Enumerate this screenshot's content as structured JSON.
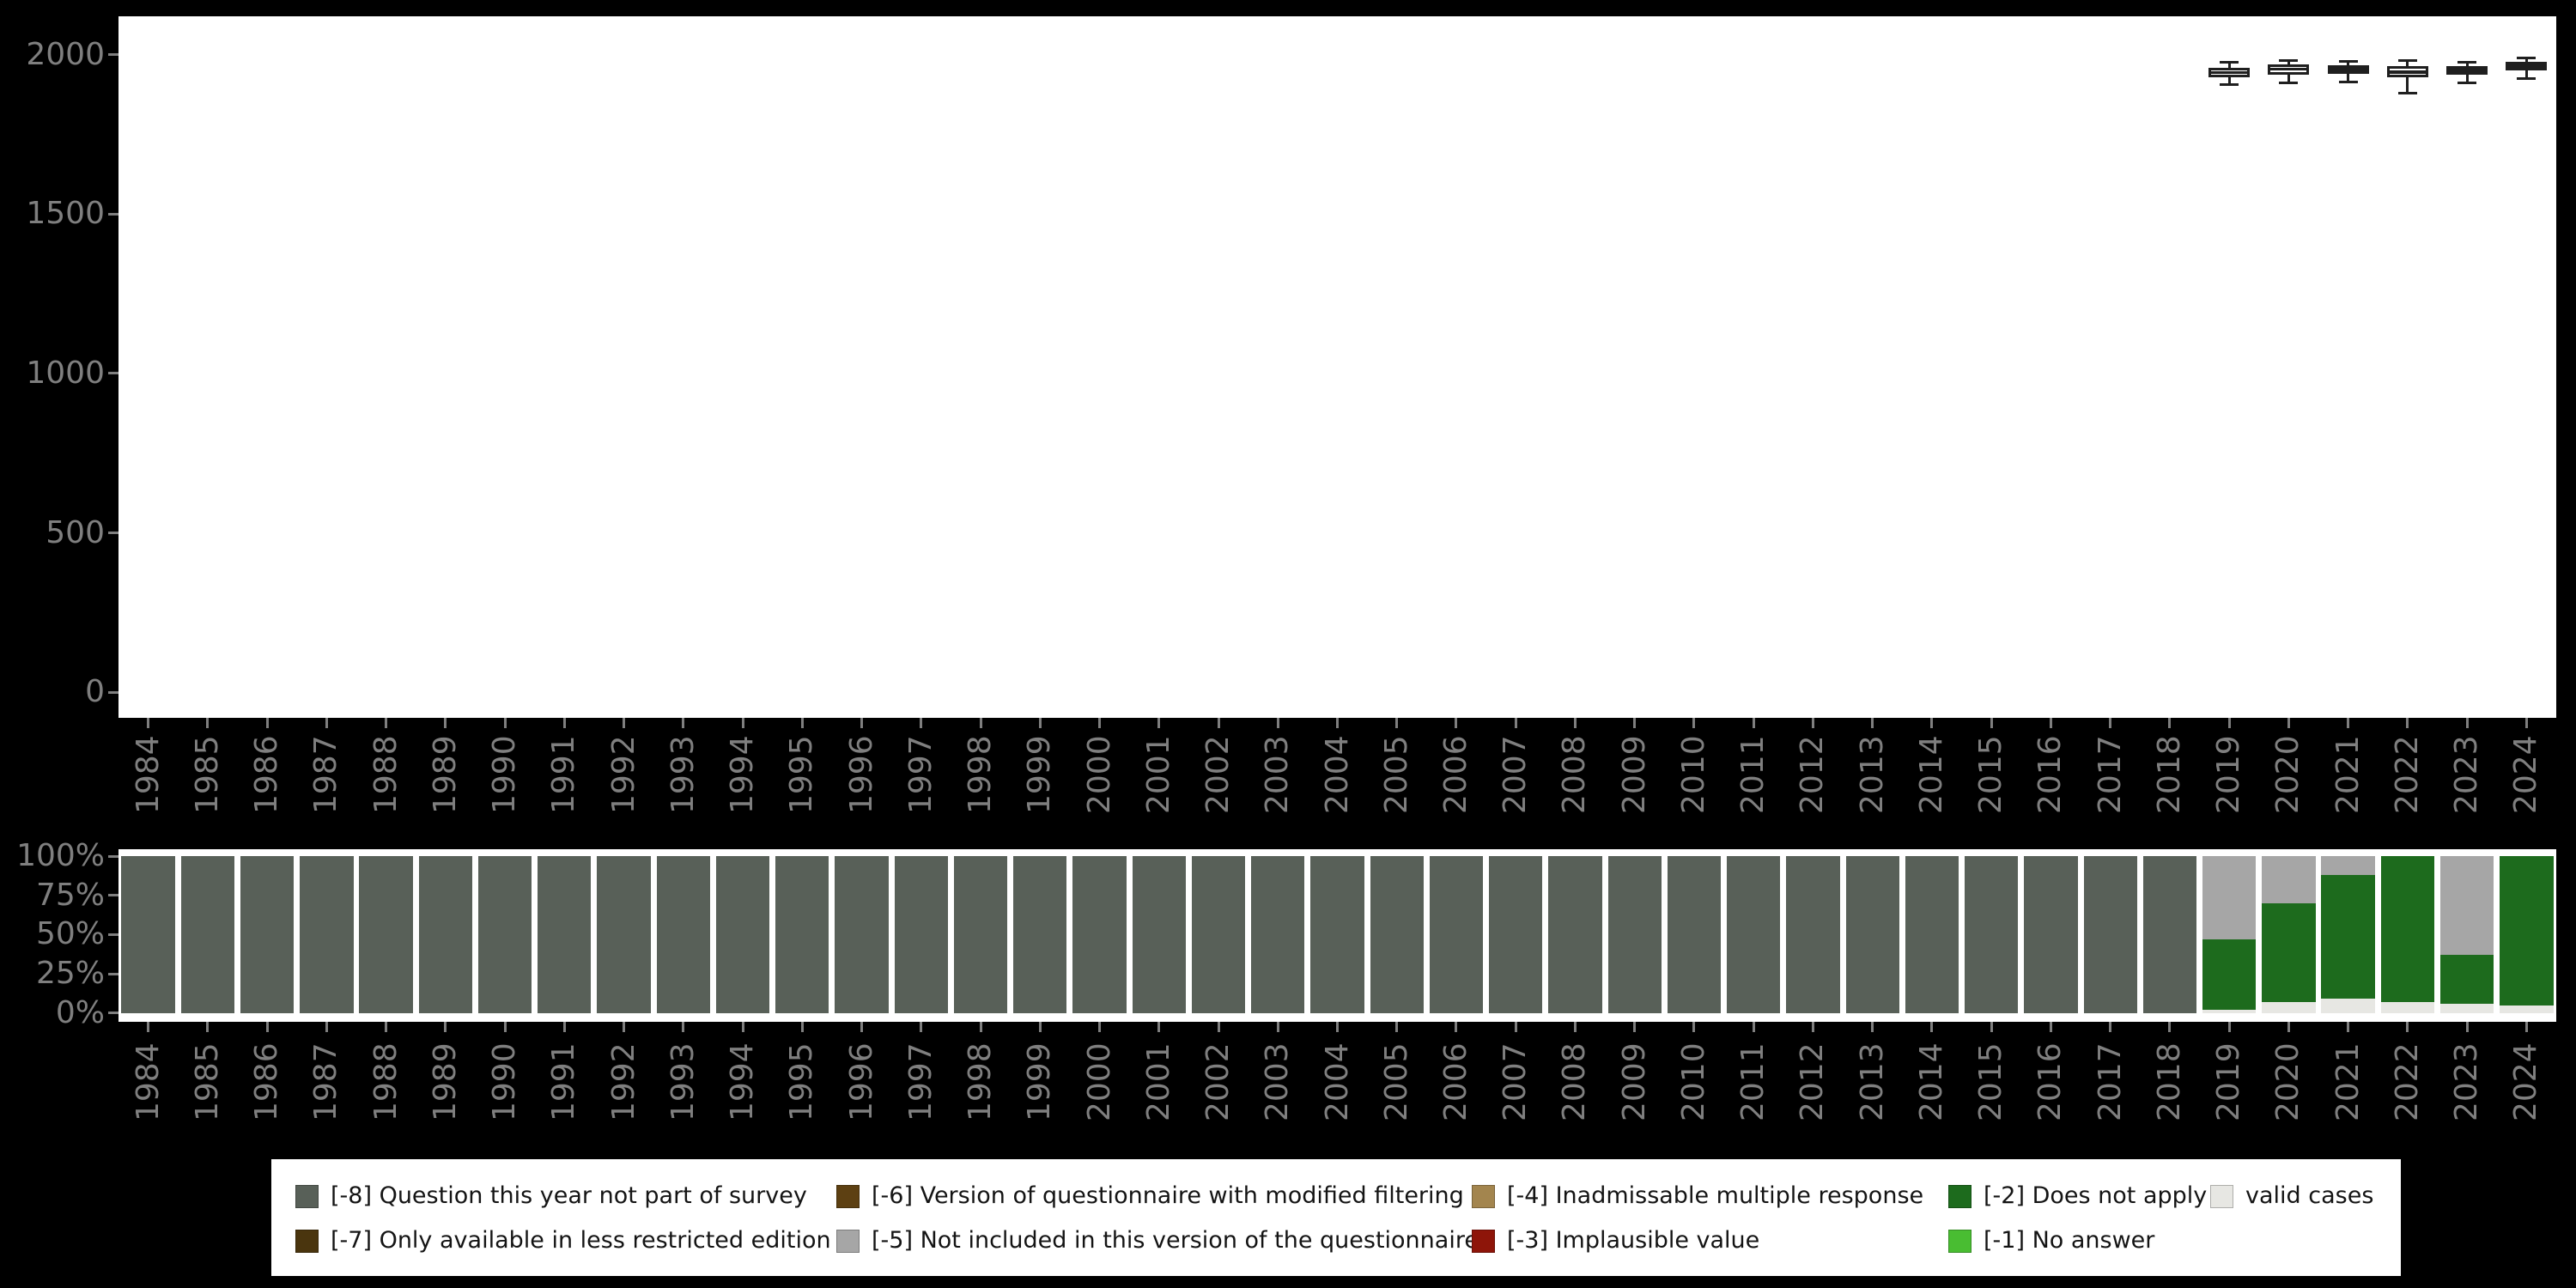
{
  "colors": {
    "background": "#000000",
    "panel": "#ffffff",
    "axis_text": "#7f7f7f",
    "box_stroke": "#1f1f1f",
    "box_fill": "#ffffff"
  },
  "chart_data": [
    {
      "type": "boxplot",
      "title": "",
      "xlabel": "",
      "ylabel": "",
      "categories": [
        "1984",
        "1985",
        "1986",
        "1987",
        "1988",
        "1989",
        "1990",
        "1991",
        "1992",
        "1993",
        "1994",
        "1995",
        "1996",
        "1997",
        "1998",
        "1999",
        "2000",
        "2001",
        "2002",
        "2003",
        "2004",
        "2005",
        "2006",
        "2007",
        "2008",
        "2009",
        "2010",
        "2011",
        "2012",
        "2013",
        "2014",
        "2015",
        "2016",
        "2017",
        "2018",
        "2019",
        "2020",
        "2021",
        "2022",
        "2023",
        "2024"
      ],
      "ylim": [
        -80,
        2120
      ],
      "ytick_values": [
        0,
        500,
        1000,
        1500,
        2000
      ],
      "ytick_labels": [
        "0",
        "500",
        "1000",
        "1500",
        "2000"
      ],
      "grid": false,
      "boxes": [
        {
          "year": "2019",
          "low": 1905,
          "q1": 1930,
          "median": 1944,
          "q3": 1958,
          "high": 1975
        },
        {
          "year": "2020",
          "low": 1910,
          "q1": 1938,
          "median": 1955,
          "q3": 1970,
          "high": 1980
        },
        {
          "year": "2021",
          "low": 1915,
          "q1": 1940,
          "median": 1953,
          "q3": 1966,
          "high": 1978
        },
        {
          "year": "2022",
          "low": 1880,
          "q1": 1928,
          "median": 1945,
          "q3": 1965,
          "high": 1980
        },
        {
          "year": "2023",
          "low": 1912,
          "q1": 1936,
          "median": 1950,
          "q3": 1963,
          "high": 1976
        },
        {
          "year": "2024",
          "low": 1925,
          "q1": 1950,
          "median": 1964,
          "q3": 1978,
          "high": 1990
        }
      ]
    },
    {
      "type": "bar",
      "stacked": true,
      "title": "",
      "xlabel": "",
      "ylabel": "",
      "unit": "percent",
      "categories": [
        "1984",
        "1985",
        "1986",
        "1987",
        "1988",
        "1989",
        "1990",
        "1991",
        "1992",
        "1993",
        "1994",
        "1995",
        "1996",
        "1997",
        "1998",
        "1999",
        "2000",
        "2001",
        "2002",
        "2003",
        "2004",
        "2005",
        "2006",
        "2007",
        "2008",
        "2009",
        "2010",
        "2011",
        "2012",
        "2013",
        "2014",
        "2015",
        "2016",
        "2017",
        "2018",
        "2019",
        "2020",
        "2021",
        "2022",
        "2023",
        "2024"
      ],
      "ytick_values": [
        0,
        25,
        50,
        75,
        100
      ],
      "ytick_labels": [
        "0%",
        "25%",
        "50%",
        "75%",
        "100%"
      ],
      "grid": false,
      "series": [
        {
          "name": "valid cases",
          "color": "#e7e7e3",
          "values": [
            0,
            0,
            0,
            0,
            0,
            0,
            0,
            0,
            0,
            0,
            0,
            0,
            0,
            0,
            0,
            0,
            0,
            0,
            0,
            0,
            0,
            0,
            0,
            0,
            0,
            0,
            0,
            0,
            0,
            0,
            0,
            0,
            0,
            0,
            0,
            2,
            7,
            9,
            7,
            6,
            5
          ]
        },
        {
          "name": "[-2] Does not apply",
          "color": "#1d6b1d",
          "values": [
            0,
            0,
            0,
            0,
            0,
            0,
            0,
            0,
            0,
            0,
            0,
            0,
            0,
            0,
            0,
            0,
            0,
            0,
            0,
            0,
            0,
            0,
            0,
            0,
            0,
            0,
            0,
            0,
            0,
            0,
            0,
            0,
            0,
            0,
            0,
            45,
            63,
            79,
            93,
            31,
            95
          ]
        },
        {
          "name": "[-5] Not included in this version of the questionnaire",
          "color": "#a6a6a6",
          "values": [
            0,
            0,
            0,
            0,
            0,
            0,
            0,
            0,
            0,
            0,
            0,
            0,
            0,
            0,
            0,
            0,
            0,
            0,
            0,
            0,
            0,
            0,
            0,
            0,
            0,
            0,
            0,
            0,
            0,
            0,
            0,
            0,
            0,
            0,
            0,
            53,
            30,
            12,
            0,
            63,
            0
          ]
        },
        {
          "name": "[-8] Question this year not part of survey",
          "color": "#586058",
          "values": [
            100,
            100,
            100,
            100,
            100,
            100,
            100,
            100,
            100,
            100,
            100,
            100,
            100,
            100,
            100,
            100,
            100,
            100,
            100,
            100,
            100,
            100,
            100,
            100,
            100,
            100,
            100,
            100,
            100,
            100,
            100,
            100,
            100,
            100,
            100,
            0,
            0,
            0,
            0,
            0,
            0
          ]
        }
      ]
    }
  ],
  "legend": {
    "items": [
      {
        "label": "[-8] Question this year not part of survey",
        "color": "#586058"
      },
      {
        "label": "[-6] Version of questionnaire with modified filtering",
        "color": "#5d4012"
      },
      {
        "label": "[-4] Inadmissable multiple response",
        "color": "#a3854e"
      },
      {
        "label": "[-2] Does not apply",
        "color": "#1d6b1d"
      },
      {
        "label": "valid cases",
        "color": "#e7e7e3"
      },
      {
        "label": "[-7] Only available in less restricted edition",
        "color": "#4a350e"
      },
      {
        "label": "[-5] Not included in this version of the questionnaire",
        "color": "#a6a6a6"
      },
      {
        "label": "[-3] Implausible value",
        "color": "#8e1509"
      },
      {
        "label": "[-1] No answer",
        "color": "#49bd32"
      }
    ]
  }
}
